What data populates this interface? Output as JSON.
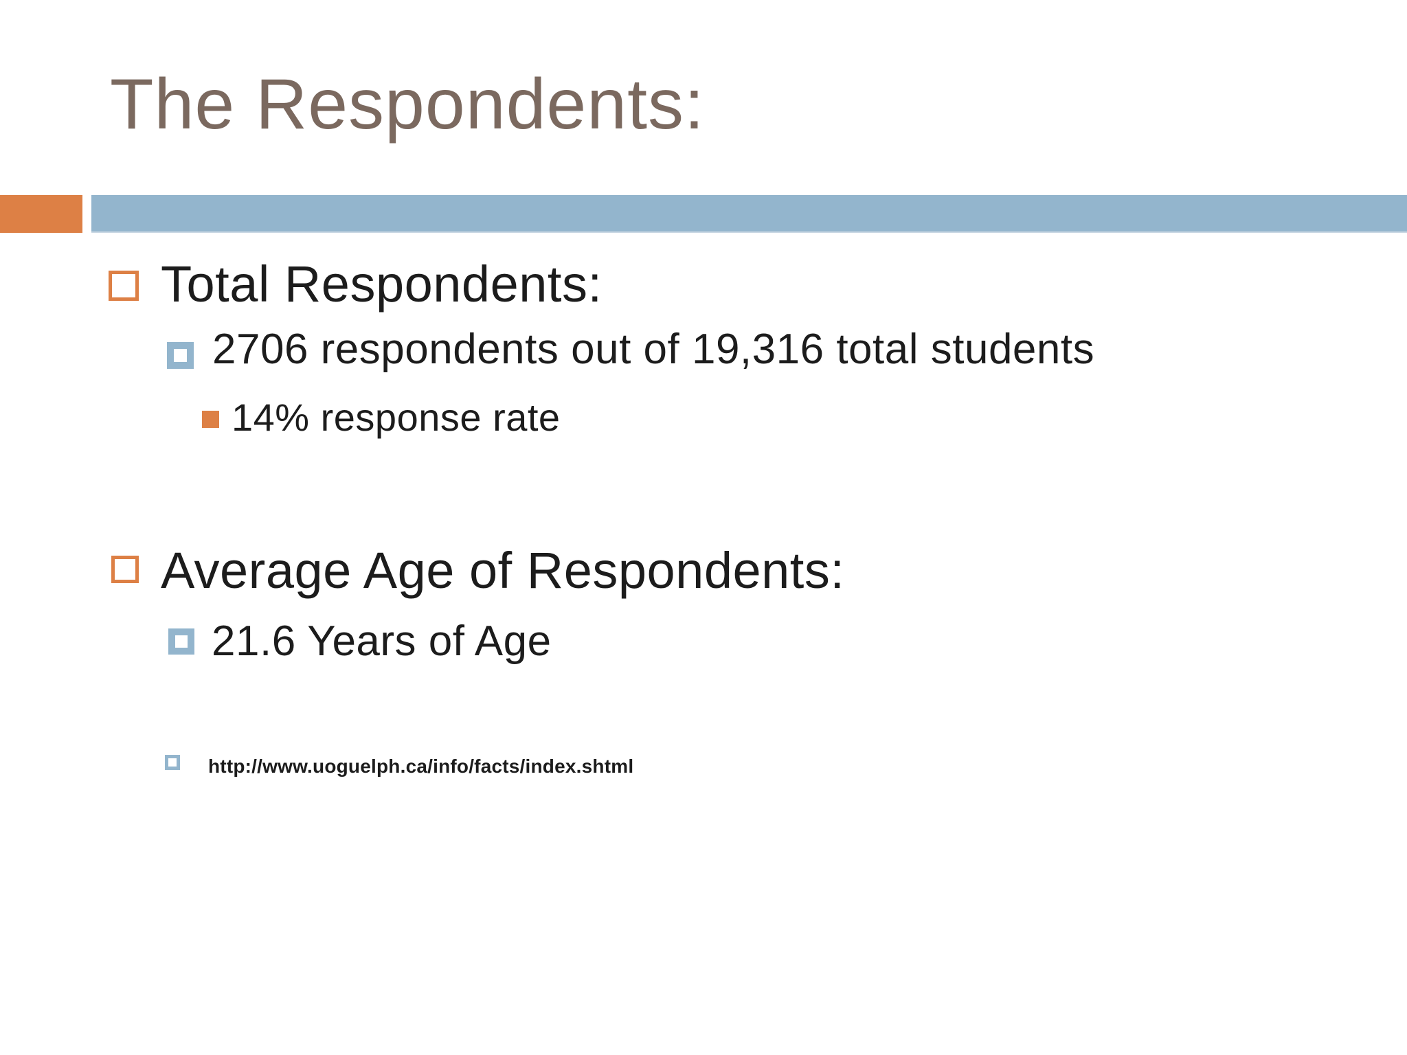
{
  "slide": {
    "title": "The Respondents:",
    "colors": {
      "title_text": "#7B695F",
      "accent_orange": "#DD8045",
      "accent_blue": "#93B5CD",
      "body_text": "#1C1C1C"
    },
    "bullets": [
      {
        "level": 1,
        "style": "orange-outline-square",
        "text": "Total Respondents:"
      },
      {
        "level": 2,
        "style": "blue-thick-square",
        "text": "2706 respondents out of 19,316 total students"
      },
      {
        "level": 3,
        "style": "orange-filled-square",
        "text": "14% response rate"
      },
      {
        "level": 1,
        "style": "orange-outline-square",
        "text": "Average Age of Respondents:"
      },
      {
        "level": 2,
        "style": "blue-thick-square",
        "text": "21.6 Years of Age"
      },
      {
        "level": 4,
        "style": "blue-small-square",
        "text": "http://www.uoguelph.ca/info/facts/index.shtml"
      }
    ]
  }
}
